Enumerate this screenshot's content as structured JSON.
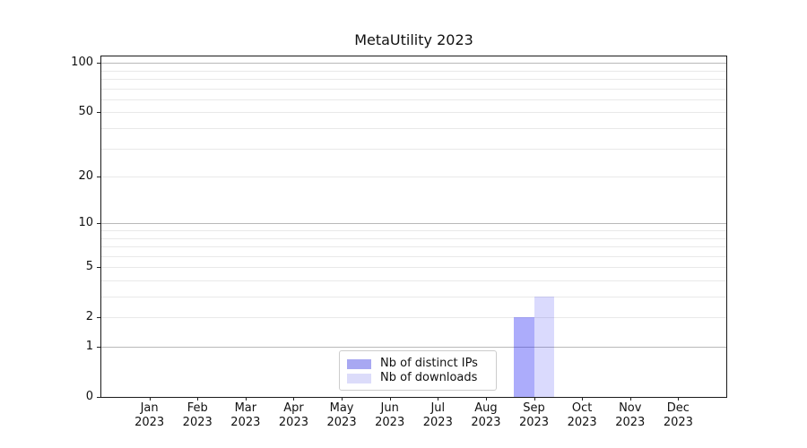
{
  "title": "MetaUtility 2023",
  "chart_data": {
    "type": "bar",
    "title": "MetaUtility 2023",
    "x_axis": {
      "months": [
        "Jan",
        "Feb",
        "Mar",
        "Apr",
        "May",
        "Jun",
        "Jul",
        "Aug",
        "Sep",
        "Oct",
        "Nov",
        "Dec"
      ],
      "year": "2023"
    },
    "series": [
      {
        "name": "Nb of distinct IPs",
        "color": "rgba(25,25,245,0.36)",
        "legend_color": "#a8a8f2",
        "values": [
          0,
          0,
          0,
          0,
          0,
          0,
          0,
          0,
          2,
          0,
          0,
          0
        ]
      },
      {
        "name": "Nb of downloads",
        "color": "rgba(25,25,245,0.16)",
        "legend_color": "#dcdcfa",
        "values": [
          0,
          0,
          0,
          0,
          0,
          0,
          0,
          0,
          3,
          0,
          0,
          0
        ]
      }
    ],
    "y_axis": {
      "scale": "log1p",
      "tick_labels": [
        0,
        1,
        2,
        5,
        10,
        20,
        50,
        100
      ],
      "major_grid": [
        1,
        10,
        100
      ],
      "minor_grid": [
        2,
        3,
        4,
        5,
        6,
        7,
        8,
        9,
        20,
        30,
        40,
        50,
        60,
        70,
        80,
        90
      ],
      "ylim": [
        0,
        110
      ]
    },
    "grid": "horizontal",
    "legend_position": "lower center"
  },
  "colors": {
    "major_grid": "#b9b9b9",
    "minor_grid": "#e9e9e9",
    "spine": "#1a1a1a"
  }
}
